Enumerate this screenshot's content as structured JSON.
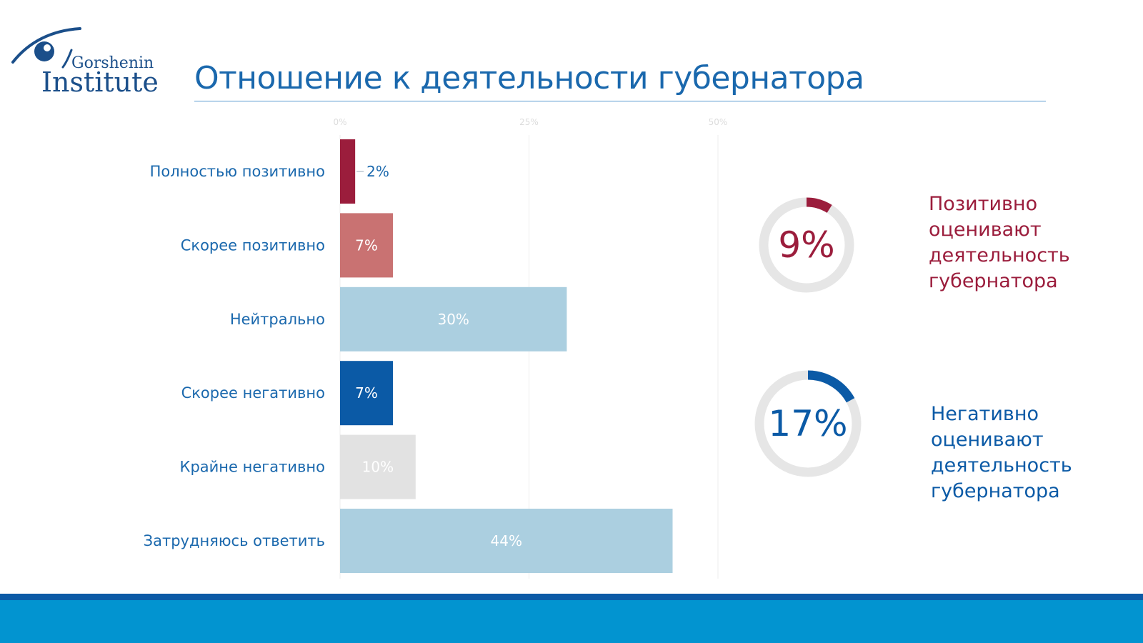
{
  "logo": {
    "name": "Gorshenin",
    "institute": "Institute"
  },
  "title": "Отношение к деятельности губернатора",
  "chart_data": {
    "type": "bar",
    "orientation": "horizontal",
    "categories": [
      "Полностью позитивно",
      "Скорее позитивно",
      "Нейтрально",
      "Скорее негативно",
      "Крайне негативно",
      "Затрудняюсь ответить"
    ],
    "values": [
      2,
      7,
      30,
      7,
      10,
      44
    ],
    "value_labels": [
      "2%",
      "7%",
      "30%",
      "7%",
      "10%",
      "44%"
    ],
    "colors": [
      "#9b1d3c",
      "#c97272",
      "#abcfe0",
      "#0b5aa6",
      "#e2e2e2",
      "#abcfe0"
    ],
    "label_colors": [
      "#1a68ad",
      "#ffffff",
      "#ffffff",
      "#ffffff",
      "#ffffff",
      "#ffffff"
    ],
    "xlim": [
      0,
      50
    ],
    "xticks": [
      "0%",
      "25%",
      "50%"
    ],
    "grid": true,
    "title": "",
    "xlabel": "",
    "ylabel": ""
  },
  "summary": {
    "positive": {
      "value": 9,
      "label": "9%",
      "text": "Позитивно оценивают деятельность губернатора",
      "color": "#9b1d3c"
    },
    "negative": {
      "value": 17,
      "label": "17%",
      "text": "Негативно оценивают деятельность губернатора",
      "color": "#0b5aa6"
    },
    "ring_color": "#e6e6e6"
  }
}
